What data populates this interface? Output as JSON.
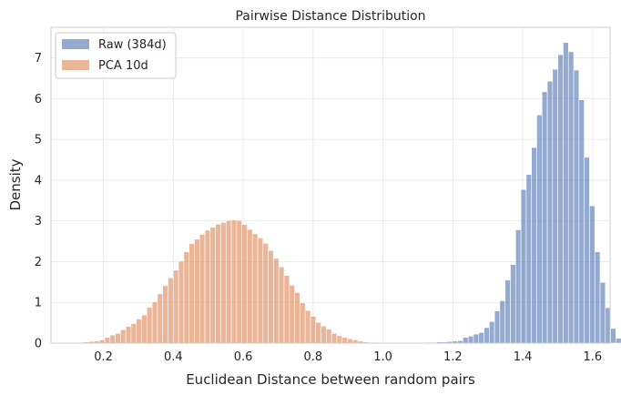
{
  "chart_data": {
    "type": "histogram",
    "title": "Pairwise Distance Distribution",
    "xlabel": "Euclidean Distance between random pairs",
    "ylabel": "Density",
    "xlim": [
      0.05,
      1.65
    ],
    "ylim": [
      0,
      7.75
    ],
    "xticks": [
      0.2,
      0.4,
      0.6,
      0.8,
      1.0,
      1.2,
      1.4,
      1.6
    ],
    "xtick_labels": [
      "0.2",
      "0.4",
      "0.6",
      "0.8",
      "1.0",
      "1.2",
      "1.4",
      "1.6"
    ],
    "yticks": [
      0,
      1,
      2,
      3,
      4,
      5,
      6,
      7
    ],
    "ytick_labels": [
      "0",
      "1",
      "2",
      "3",
      "4",
      "5",
      "6",
      "7"
    ],
    "grid": true,
    "legend_position": "top-left",
    "series": [
      {
        "name": "Raw (384d)",
        "color": "#4c72b0",
        "bin_start": 1.108,
        "bin_width": 0.0151,
        "values": [
          0.01,
          0.02,
          0.02,
          0.03,
          0.03,
          0.04,
          0.05,
          0.06,
          0.14,
          0.17,
          0.22,
          0.26,
          0.38,
          0.53,
          0.79,
          1.04,
          1.55,
          1.93,
          2.78,
          3.77,
          4.14,
          4.8,
          5.6,
          6.17,
          6.43,
          6.72,
          7.08,
          7.38,
          7.15,
          6.7,
          5.97,
          4.56,
          3.37,
          2.24,
          1.49,
          0.87,
          0.36,
          0.12,
          0.05
        ]
      },
      {
        "name": "PCA 10d",
        "color": "#dd8452",
        "bin_start": 0.098,
        "bin_width": 0.0151,
        "values": [
          0.01,
          0.01,
          0.02,
          0.03,
          0.04,
          0.05,
          0.08,
          0.14,
          0.2,
          0.24,
          0.33,
          0.41,
          0.48,
          0.59,
          0.69,
          0.88,
          1.01,
          1.21,
          1.41,
          1.6,
          1.79,
          2.01,
          2.24,
          2.44,
          2.55,
          2.67,
          2.77,
          2.84,
          2.92,
          2.96,
          3.01,
          3.02,
          3.01,
          2.91,
          2.79,
          2.68,
          2.58,
          2.45,
          2.27,
          2.08,
          1.87,
          1.66,
          1.42,
          1.24,
          0.99,
          0.8,
          0.66,
          0.51,
          0.42,
          0.34,
          0.24,
          0.18,
          0.14,
          0.11,
          0.08,
          0.05,
          0.03,
          0.02,
          0.02,
          0.01
        ]
      }
    ]
  }
}
